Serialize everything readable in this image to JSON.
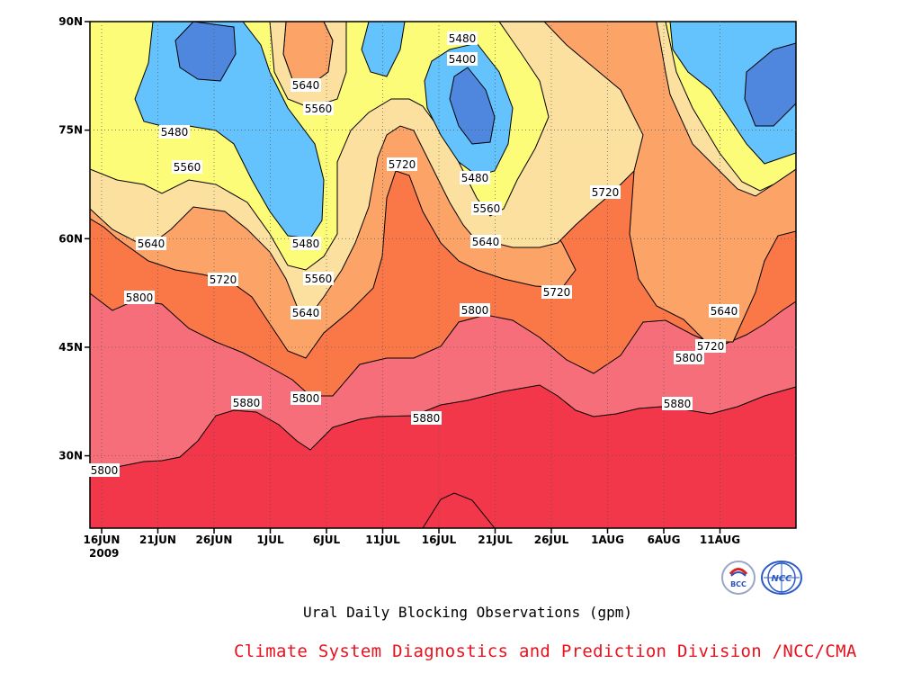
{
  "chart_data": {
    "type": "heatmap",
    "subtype": "filled-contour",
    "title": "Ural Daily Blocking Observations (gpm)",
    "credit": "Climate System Diagnostics and Prediction Division /NCC/CMA",
    "x_ticks": [
      "16JUN",
      "21JUN",
      "26JUN",
      "1JUL",
      "6JUL",
      "11JUL",
      "16JUL",
      "21JUL",
      "26JUL",
      "1AUG",
      "6AUG",
      "11AUG"
    ],
    "x_year_label": "2009",
    "y_ticks": [
      "90N",
      "75N",
      "60N",
      "45N",
      "30N"
    ],
    "y_range_deg": [
      20,
      90
    ],
    "contour_levels": [
      5400,
      5480,
      5560,
      5640,
      5720,
      5800,
      5880
    ],
    "level_colors": {
      "below_5400": "#4f87df",
      "5400_5480": "#64c2fc",
      "5480_5560": "#fcfc78",
      "5560_5640": "#fce0a0",
      "5640_5720": "#fca468",
      "5720_5800": "#fa7748",
      "5800_5880": "#f66e7a",
      "above_5880": "#f2374a"
    },
    "contour_labels": [
      "5480",
      "5400",
      "5640",
      "5560",
      "5480",
      "5720",
      "5480",
      "5560",
      "5560",
      "5640",
      "5720",
      "5480",
      "5560",
      "5640",
      "5720",
      "5640",
      "5800",
      "5640",
      "5720",
      "5800",
      "5720",
      "5800",
      "5800",
      "5880",
      "5800",
      "5880",
      "5880",
      "5880"
    ],
    "grid": "dotted"
  },
  "logos": [
    {
      "icon": "bcc-logo",
      "text": "BCC"
    },
    {
      "icon": "ncc-logo",
      "text": "NCC"
    }
  ]
}
